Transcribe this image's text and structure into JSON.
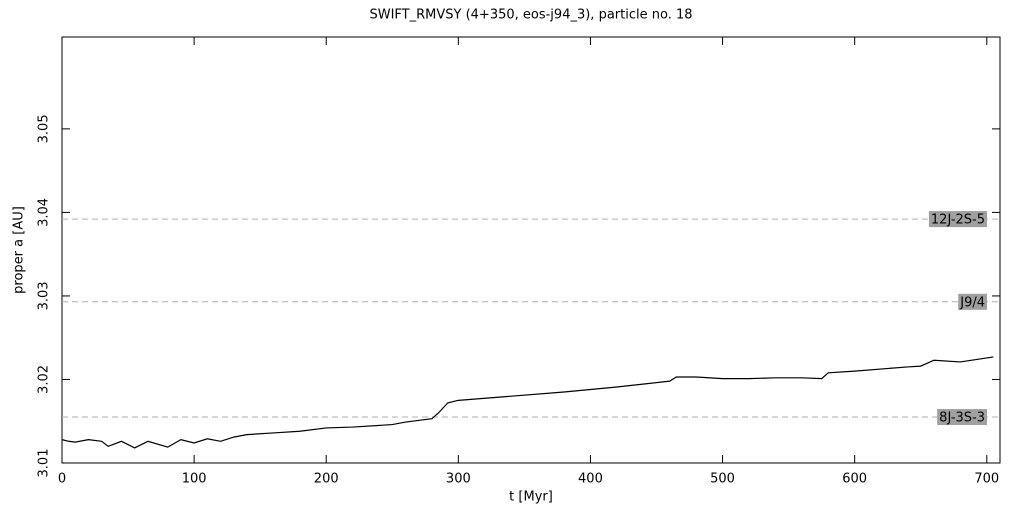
{
  "chart_data": {
    "type": "line",
    "title": "SWIFT_RMVSY (4+350, eos-j94_3), particle no. 18",
    "x_label": "t [Myr]",
    "y_label": "proper a [AU]",
    "xlim": [
      0,
      710
    ],
    "ylim": [
      3.01,
      3.061
    ],
    "xticks": [
      0,
      100,
      200,
      300,
      400,
      500,
      600,
      700
    ],
    "yticks": [
      3.01,
      3.02,
      3.03,
      3.04,
      3.05
    ],
    "x": [
      0,
      5,
      10,
      20,
      30,
      35,
      45,
      55,
      65,
      80,
      90,
      100,
      110,
      120,
      130,
      140,
      160,
      180,
      200,
      220,
      250,
      260,
      280,
      285,
      292,
      300,
      340,
      380,
      420,
      460,
      465,
      480,
      500,
      520,
      540,
      560,
      575,
      580,
      600,
      640,
      650,
      660,
      680,
      705
    ],
    "series": [
      {
        "name": "particle no. 18",
        "color": "#000000",
        "values": [
          3.0128,
          3.0126,
          3.0125,
          3.0128,
          3.0126,
          3.012,
          3.0126,
          3.0118,
          3.0126,
          3.0119,
          3.0128,
          3.0124,
          3.0129,
          3.0126,
          3.0131,
          3.0134,
          3.0136,
          3.0138,
          3.0142,
          3.0143,
          3.0146,
          3.0149,
          3.0153,
          3.016,
          3.0172,
          3.0175,
          3.018,
          3.0185,
          3.0191,
          3.0198,
          3.0203,
          3.0203,
          3.0201,
          3.0201,
          3.0202,
          3.0202,
          3.0201,
          3.0208,
          3.021,
          3.0215,
          3.0216,
          3.0223,
          3.0221,
          3.0227
        ]
      }
    ],
    "reference_lines": [
      {
        "label": "12J-2S-5",
        "value": 3.0392
      },
      {
        "label": "J9/4",
        "value": 3.0293
      },
      {
        "label": "8J-3S-3",
        "value": 3.0155
      }
    ],
    "reference_color": "#b0b0b0",
    "reference_label_bg": "#a0a0a0"
  }
}
